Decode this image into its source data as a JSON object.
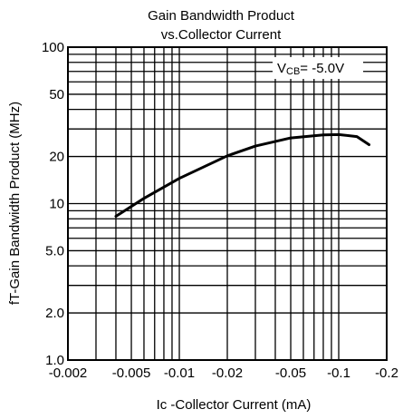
{
  "chart_data": {
    "type": "line",
    "title": "Gain Bandwidth Product",
    "subtitle": "vs.Collector Current",
    "xlabel": "Ic -Collector Current  (mA)",
    "ylabel": "fT-Gain Bandwidth Product (MHz)",
    "x_scale": "log",
    "y_scale": "log",
    "xlim": [
      -0.002,
      -0.2
    ],
    "ylim": [
      1.0,
      100
    ],
    "grid": true,
    "x_ticks": [
      {
        "value": -0.002,
        "label": "-0.002"
      },
      {
        "value": -0.005,
        "label": "-0.005"
      },
      {
        "value": -0.01,
        "label": "-0.01"
      },
      {
        "value": -0.02,
        "label": "-0.02"
      },
      {
        "value": -0.05,
        "label": "-0.05"
      },
      {
        "value": -0.1,
        "label": "-0.1"
      },
      {
        "value": -0.2,
        "label": "-0.2"
      }
    ],
    "y_ticks": [
      {
        "value": 1.0,
        "label": "1.0"
      },
      {
        "value": 2.0,
        "label": "2.0"
      },
      {
        "value": 5.0,
        "label": "5.0"
      },
      {
        "value": 10,
        "label": "10"
      },
      {
        "value": 20,
        "label": "20"
      },
      {
        "value": 50,
        "label": "50"
      },
      {
        "value": 100,
        "label": "100"
      }
    ],
    "annotation": {
      "prefix": "V",
      "subscript": "CB",
      "suffix": "= -5.0V"
    },
    "series": [
      {
        "color": "#000000",
        "points": [
          {
            "x": -0.004,
            "y": 8.3
          },
          {
            "x": -0.006,
            "y": 10.8
          },
          {
            "x": -0.01,
            "y": 14.5
          },
          {
            "x": -0.02,
            "y": 20.2
          },
          {
            "x": -0.03,
            "y": 23.3
          },
          {
            "x": -0.05,
            "y": 26.3
          },
          {
            "x": -0.08,
            "y": 27.5
          },
          {
            "x": -0.1,
            "y": 27.6
          },
          {
            "x": -0.13,
            "y": 26.8
          },
          {
            "x": -0.155,
            "y": 23.8
          }
        ]
      }
    ]
  }
}
